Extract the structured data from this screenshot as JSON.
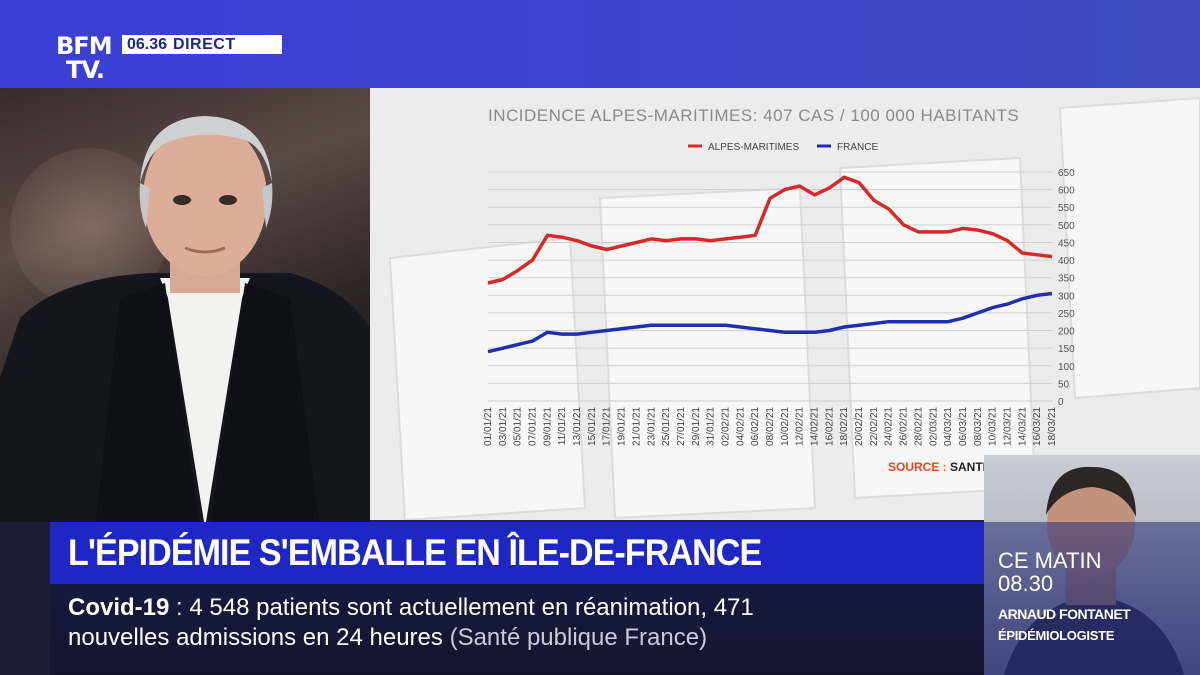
{
  "channel": {
    "logo_line1": "BFM",
    "logo_line2": "TV.",
    "clock": "06.36",
    "live_label": "DIRECT"
  },
  "colors": {
    "alpes_series": "#d62a2a",
    "france_series": "#1f2fb0",
    "headline_bg": "#1e26c4",
    "banner_bg": "#3a3fd6"
  },
  "chart_data": {
    "type": "line",
    "title": "INCIDENCE ALPES-MARITIMES: 407 CAS / 100 000 HABITANTS",
    "legend_position": "top",
    "grid": true,
    "ylim": [
      0,
      650
    ],
    "yticks": [
      0,
      50,
      100,
      150,
      200,
      250,
      300,
      350,
      400,
      450,
      500,
      550,
      600,
      650
    ],
    "x": [
      "01/01/21",
      "03/01/21",
      "05/01/21",
      "07/01/21",
      "09/01/21",
      "11/01/21",
      "13/01/21",
      "15/01/21",
      "17/01/21",
      "19/01/21",
      "21/01/21",
      "23/01/21",
      "25/01/21",
      "27/01/21",
      "29/01/21",
      "31/01/21",
      "02/02/21",
      "04/02/21",
      "06/02/21",
      "08/02/21",
      "10/02/21",
      "12/02/21",
      "14/02/21",
      "16/02/21",
      "18/02/21",
      "20/02/21",
      "22/02/21",
      "24/02/21",
      "26/02/21",
      "28/02/21",
      "02/03/21",
      "04/03/21",
      "06/03/21",
      "08/03/21",
      "10/03/21",
      "12/03/21",
      "14/03/21",
      "16/03/21",
      "18/03/21"
    ],
    "series": [
      {
        "name": "ALPES-MARITIMES",
        "values": [
          335,
          345,
          370,
          400,
          470,
          465,
          455,
          440,
          430,
          440,
          450,
          460,
          455,
          460,
          460,
          455,
          460,
          465,
          470,
          575,
          600,
          610,
          585,
          605,
          635,
          620,
          570,
          545,
          500,
          480,
          480,
          480,
          490,
          485,
          475,
          455,
          420,
          415,
          410
        ]
      },
      {
        "name": "FRANCE",
        "values": [
          140,
          150,
          160,
          170,
          195,
          190,
          190,
          195,
          200,
          205,
          210,
          215,
          215,
          215,
          215,
          215,
          215,
          210,
          205,
          200,
          195,
          195,
          195,
          200,
          210,
          215,
          220,
          225,
          225,
          225,
          225,
          225,
          235,
          250,
          265,
          275,
          290,
          300,
          305
        ]
      }
    ],
    "source_label": "SOURCE :",
    "source_value": "SANTE PUBLIQUE FRANCE"
  },
  "headline": "L'ÉPIDÉMIE S'EMBALLE EN ÎLE-DE-FRANCE",
  "ticker": {
    "keyword": "Covid-19",
    "separator": " : ",
    "line1": "4 548 patients sont actuellement en réanimation, 471",
    "line2": "nouvelles admissions en 24 heures",
    "line2_source": "(Santé publique France)"
  },
  "guest": {
    "show_label": "CE MATIN",
    "show_time": "08.30",
    "name": "ARNAUD FONTANET",
    "role": "ÉPIDÉMIOLOGISTE"
  }
}
